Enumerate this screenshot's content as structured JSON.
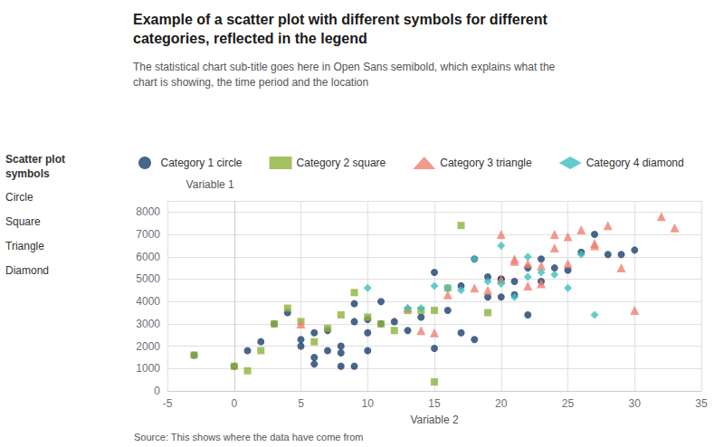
{
  "chart_data": {
    "type": "scatter",
    "title": "Example of a scatter plot with different symbols for different\ncategories, reflected in the legend",
    "subtitle": "The statistical chart sub-title goes here in Open Sans semibold, which explains what the\nchart is showing, the time period and the location",
    "source": "Source: This shows where the data have come from",
    "annotations": [
      "Scatter plot\nsymbols",
      "Circle",
      "Square",
      "Triangle",
      "Diamond"
    ],
    "xlabel": "Variable 2",
    "ylabel": "Variable 1",
    "xlim": [
      -5,
      35
    ],
    "ylim": [
      0,
      8500
    ],
    "xticks": [
      -5,
      0,
      5,
      10,
      15,
      20,
      25,
      30,
      35
    ],
    "yticks": [
      0,
      1000,
      2000,
      3000,
      4000,
      5000,
      6000,
      7000,
      8000
    ],
    "grid": true,
    "legend": "top",
    "series": [
      {
        "name": "Category 1 circle",
        "color": "#1a3f6f",
        "marker": "circle",
        "x": [
          -3,
          0,
          1,
          2,
          3,
          4,
          5,
          5,
          6,
          6,
          6,
          7,
          7,
          8,
          8,
          8,
          9,
          9,
          9,
          10,
          10,
          10,
          11,
          11,
          12,
          13,
          14,
          15,
          15,
          16,
          17,
          17,
          18,
          18,
          19,
          19,
          20,
          20,
          20,
          21,
          21,
          22,
          22,
          23,
          23,
          24,
          25,
          26,
          27,
          28,
          29,
          30
        ],
        "values": [
          1600,
          1100,
          1800,
          2200,
          3000,
          3500,
          2000,
          2300,
          1200,
          1500,
          2600,
          1800,
          2700,
          1100,
          1700,
          2000,
          1100,
          3100,
          3900,
          1800,
          3200,
          2600,
          3000,
          4000,
          3100,
          2700,
          3300,
          1900,
          5300,
          3600,
          4700,
          2600,
          5900,
          2300,
          4200,
          5100,
          5000,
          4200,
          5000,
          4300,
          4900,
          5500,
          3400,
          5900,
          4900,
          5500,
          5400,
          6200,
          7000,
          6100,
          6100,
          6300
        ]
      },
      {
        "name": "Category 2 square",
        "color": "#8db33a",
        "marker": "square",
        "x": [
          -3,
          0,
          1,
          2,
          3,
          4,
          5,
          6,
          7,
          8,
          9,
          10,
          11,
          12,
          13,
          14,
          15,
          15,
          16,
          17,
          19
        ],
        "values": [
          1600,
          1100,
          900,
          1800,
          3000,
          3700,
          3100,
          2200,
          2800,
          3400,
          4400,
          3300,
          3000,
          2700,
          3600,
          3600,
          400,
          3600,
          4600,
          7400,
          3500
        ]
      },
      {
        "name": "Category 3 triangle",
        "color": "#f08070",
        "marker": "triangle",
        "x": [
          5,
          13,
          14,
          15,
          16,
          18,
          19,
          20,
          20,
          21,
          21,
          22,
          22,
          23,
          23,
          24,
          24,
          25,
          25,
          26,
          27,
          27,
          28,
          29,
          30,
          32,
          33
        ],
        "values": [
          3000,
          3700,
          2700,
          2600,
          4300,
          4600,
          4500,
          5000,
          7000,
          5900,
          5800,
          5700,
          4700,
          5600,
          4800,
          7000,
          6400,
          6900,
          5700,
          7200,
          6600,
          6500,
          7400,
          5500,
          3600,
          7800,
          7300
        ]
      },
      {
        "name": "Category 4 diamond",
        "color": "#3dbfbf",
        "marker": "diamond",
        "x": [
          10,
          13,
          14,
          15,
          16,
          17,
          18,
          19,
          20,
          20,
          21,
          22,
          22,
          23,
          24,
          25,
          26,
          27
        ],
        "values": [
          4600,
          3700,
          3700,
          4700,
          4600,
          4500,
          5900,
          4900,
          4800,
          6500,
          4200,
          6000,
          5100,
          5300,
          5200,
          4600,
          6100,
          3400
        ]
      }
    ]
  }
}
